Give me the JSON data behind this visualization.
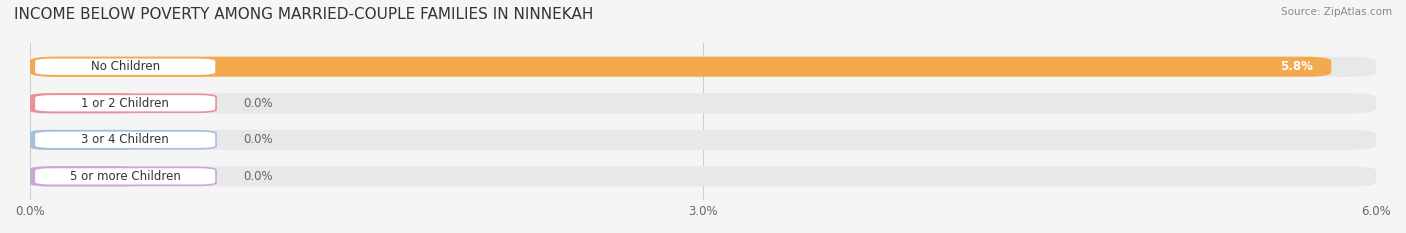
{
  "title": "INCOME BELOW POVERTY AMONG MARRIED-COUPLE FAMILIES IN NINNEKAH",
  "source": "Source: ZipAtlas.com",
  "categories": [
    "No Children",
    "1 or 2 Children",
    "3 or 4 Children",
    "5 or more Children"
  ],
  "values": [
    5.8,
    0.0,
    0.0,
    0.0
  ],
  "bar_colors": [
    "#F5A94E",
    "#E8919A",
    "#A8BEDE",
    "#C9A8D4"
  ],
  "xlim": [
    0,
    6.0
  ],
  "xticks": [
    0.0,
    3.0,
    6.0
  ],
  "xtick_labels": [
    "0.0%",
    "3.0%",
    "6.0%"
  ],
  "background_color": "#f5f5f5",
  "bar_background_color": "#e8e8e8",
  "title_fontsize": 11,
  "tick_fontsize": 8.5,
  "label_fontsize": 8.5,
  "value_fontsize": 8.5
}
